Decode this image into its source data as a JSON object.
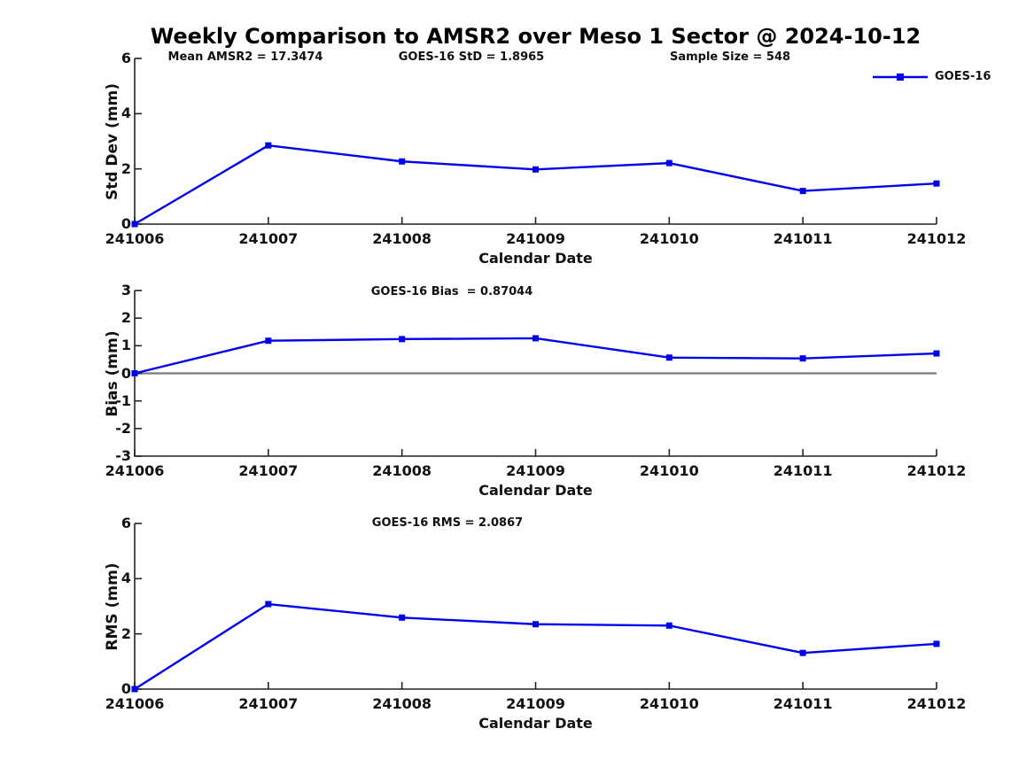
{
  "title": "Weekly Comparison to AMSR2 over Meso 1 Sector @ 2024-10-12",
  "legend": {
    "label": "GOES-16"
  },
  "colors": {
    "line": "#0000EE",
    "zero_line": "#7a7a7a",
    "axis": "#222222"
  },
  "chart_data": [
    {
      "type": "line",
      "ylabel": "Std Dev (mm)",
      "xlabel": "Calendar Date",
      "annotations": [
        "Mean AMSR2 = 17.3474",
        "GOES-16 StD = 1.8965",
        "Sample Size = 548"
      ],
      "categories": [
        "241006",
        "241007",
        "241008",
        "241009",
        "241010",
        "241011",
        "241012"
      ],
      "series": [
        {
          "name": "GOES-16",
          "values": [
            0,
            2.85,
            2.27,
            1.98,
            2.21,
            1.2,
            1.47
          ]
        }
      ],
      "ylim": [
        0,
        6
      ],
      "yticks": [
        0,
        2,
        4,
        6
      ],
      "legend_position": "top-right",
      "grid": false
    },
    {
      "type": "line",
      "ylabel": "Bias (mm)",
      "xlabel": "Calendar Date",
      "annotations": [
        "GOES-16 Bias  = 0.87044"
      ],
      "categories": [
        "241006",
        "241007",
        "241008",
        "241009",
        "241010",
        "241011",
        "241012"
      ],
      "series": [
        {
          "name": "GOES-16",
          "values": [
            0,
            1.18,
            1.24,
            1.27,
            0.57,
            0.54,
            0.72
          ]
        }
      ],
      "ylim": [
        -3,
        3
      ],
      "yticks": [
        3,
        2,
        1,
        0,
        -1,
        -2,
        -3
      ],
      "zero_line": true,
      "grid": false
    },
    {
      "type": "line",
      "ylabel": "RMS (mm)",
      "xlabel": "Calendar Date",
      "annotations": [
        "GOES-16 RMS = 2.0867"
      ],
      "categories": [
        "241006",
        "241007",
        "241008",
        "241009",
        "241010",
        "241011",
        "241012"
      ],
      "series": [
        {
          "name": "GOES-16",
          "values": [
            0,
            3.08,
            2.59,
            2.35,
            2.3,
            1.31,
            1.64
          ]
        }
      ],
      "ylim": [
        0,
        6
      ],
      "yticks": [
        0,
        2,
        4,
        6
      ],
      "grid": false
    }
  ]
}
